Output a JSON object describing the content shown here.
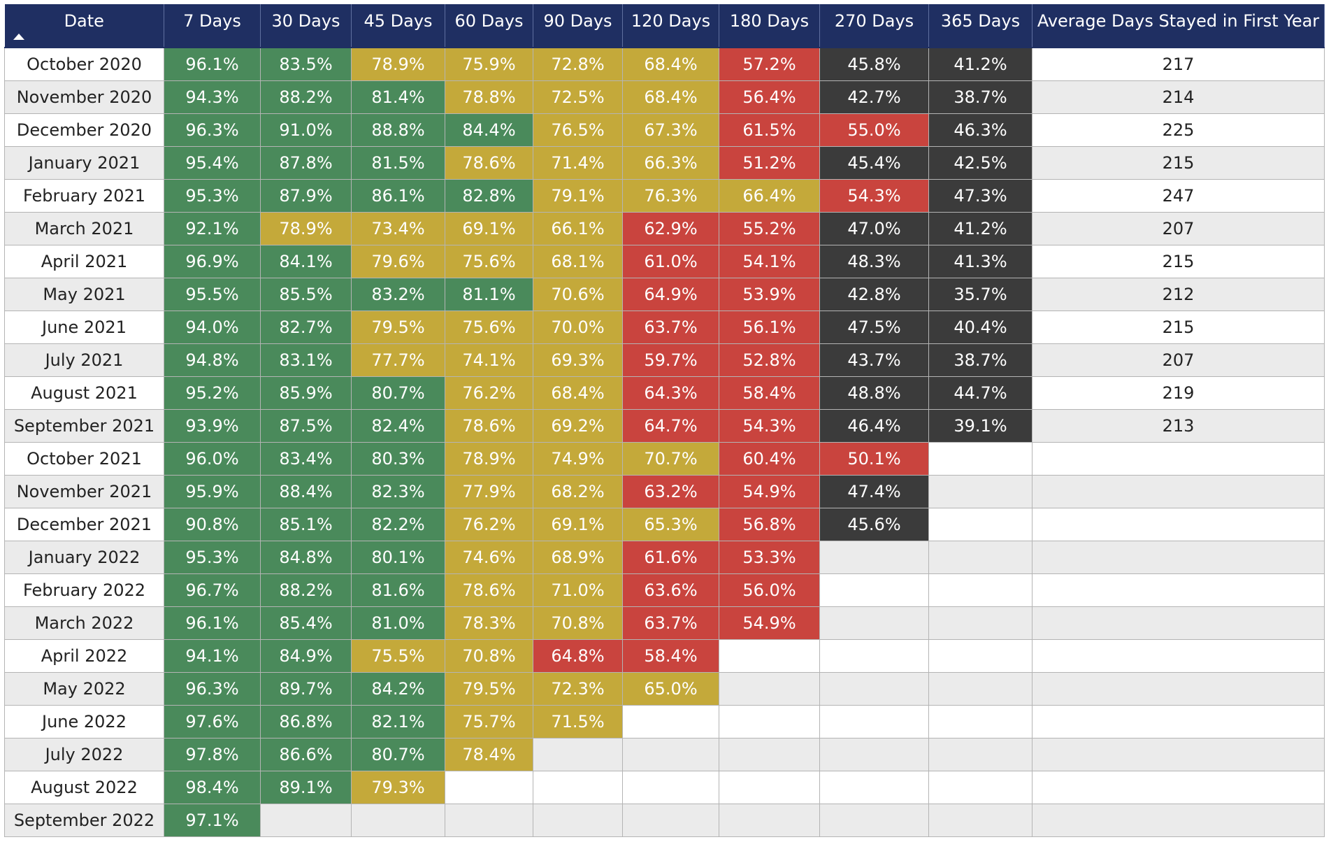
{
  "table": {
    "columns": [
      "Date",
      "7 Days",
      "30 Days",
      "45 Days",
      "60 Days",
      "90 Days",
      "120 Days",
      "180 Days",
      "270 Days",
      "365 Days",
      "Average Days Stayed in First Year"
    ],
    "sort_icon": "sort-ascending-icon",
    "colors": {
      "header": "#1f2f62",
      "green": "#4a8a5b",
      "yellow": "#c4a93a",
      "red": "#c9443e",
      "dark": "#3b3b3b"
    },
    "rows": [
      {
        "date": "October 2020",
        "values": [
          "96.1%",
          "83.5%",
          "78.9%",
          "75.9%",
          "72.8%",
          "68.4%",
          "57.2%",
          "45.8%",
          "41.2%"
        ],
        "colors": [
          "green",
          "green",
          "yellow",
          "yellow",
          "yellow",
          "yellow",
          "red",
          "dark",
          "dark"
        ],
        "avg": "217"
      },
      {
        "date": "November 2020",
        "values": [
          "94.3%",
          "88.2%",
          "81.4%",
          "78.8%",
          "72.5%",
          "68.4%",
          "56.4%",
          "42.7%",
          "38.7%"
        ],
        "colors": [
          "green",
          "green",
          "green",
          "yellow",
          "yellow",
          "yellow",
          "red",
          "dark",
          "dark"
        ],
        "avg": "214"
      },
      {
        "date": "December 2020",
        "values": [
          "96.3%",
          "91.0%",
          "88.8%",
          "84.4%",
          "76.5%",
          "67.3%",
          "61.5%",
          "55.0%",
          "46.3%"
        ],
        "colors": [
          "green",
          "green",
          "green",
          "green",
          "yellow",
          "yellow",
          "red",
          "red",
          "dark"
        ],
        "avg": "225"
      },
      {
        "date": "January 2021",
        "values": [
          "95.4%",
          "87.8%",
          "81.5%",
          "78.6%",
          "71.4%",
          "66.3%",
          "51.2%",
          "45.4%",
          "42.5%"
        ],
        "colors": [
          "green",
          "green",
          "green",
          "yellow",
          "yellow",
          "yellow",
          "red",
          "dark",
          "dark"
        ],
        "avg": "215"
      },
      {
        "date": "February 2021",
        "values": [
          "95.3%",
          "87.9%",
          "86.1%",
          "82.8%",
          "79.1%",
          "76.3%",
          "66.4%",
          "54.3%",
          "47.3%"
        ],
        "colors": [
          "green",
          "green",
          "green",
          "green",
          "yellow",
          "yellow",
          "yellow",
          "red",
          "dark"
        ],
        "avg": "247"
      },
      {
        "date": "March 2021",
        "values": [
          "92.1%",
          "78.9%",
          "73.4%",
          "69.1%",
          "66.1%",
          "62.9%",
          "55.2%",
          "47.0%",
          "41.2%"
        ],
        "colors": [
          "green",
          "yellow",
          "yellow",
          "yellow",
          "yellow",
          "red",
          "red",
          "dark",
          "dark"
        ],
        "avg": "207"
      },
      {
        "date": "April 2021",
        "values": [
          "96.9%",
          "84.1%",
          "79.6%",
          "75.6%",
          "68.1%",
          "61.0%",
          "54.1%",
          "48.3%",
          "41.3%"
        ],
        "colors": [
          "green",
          "green",
          "yellow",
          "yellow",
          "yellow",
          "red",
          "red",
          "dark",
          "dark"
        ],
        "avg": "215"
      },
      {
        "date": "May 2021",
        "values": [
          "95.5%",
          "85.5%",
          "83.2%",
          "81.1%",
          "70.6%",
          "64.9%",
          "53.9%",
          "42.8%",
          "35.7%"
        ],
        "colors": [
          "green",
          "green",
          "green",
          "green",
          "yellow",
          "red",
          "red",
          "dark",
          "dark"
        ],
        "avg": "212"
      },
      {
        "date": "June 2021",
        "values": [
          "94.0%",
          "82.7%",
          "79.5%",
          "75.6%",
          "70.0%",
          "63.7%",
          "56.1%",
          "47.5%",
          "40.4%"
        ],
        "colors": [
          "green",
          "green",
          "yellow",
          "yellow",
          "yellow",
          "red",
          "red",
          "dark",
          "dark"
        ],
        "avg": "215"
      },
      {
        "date": "July 2021",
        "values": [
          "94.8%",
          "83.1%",
          "77.7%",
          "74.1%",
          "69.3%",
          "59.7%",
          "52.8%",
          "43.7%",
          "38.7%"
        ],
        "colors": [
          "green",
          "green",
          "yellow",
          "yellow",
          "yellow",
          "red",
          "red",
          "dark",
          "dark"
        ],
        "avg": "207"
      },
      {
        "date": "August 2021",
        "values": [
          "95.2%",
          "85.9%",
          "80.7%",
          "76.2%",
          "68.4%",
          "64.3%",
          "58.4%",
          "48.8%",
          "44.7%"
        ],
        "colors": [
          "green",
          "green",
          "green",
          "yellow",
          "yellow",
          "red",
          "red",
          "dark",
          "dark"
        ],
        "avg": "219"
      },
      {
        "date": "September 2021",
        "values": [
          "93.9%",
          "87.5%",
          "82.4%",
          "78.6%",
          "69.2%",
          "64.7%",
          "54.3%",
          "46.4%",
          "39.1%"
        ],
        "colors": [
          "green",
          "green",
          "green",
          "yellow",
          "yellow",
          "red",
          "red",
          "dark",
          "dark"
        ],
        "avg": "213"
      },
      {
        "date": "October 2021",
        "values": [
          "96.0%",
          "83.4%",
          "80.3%",
          "78.9%",
          "74.9%",
          "70.7%",
          "60.4%",
          "50.1%",
          ""
        ],
        "colors": [
          "green",
          "green",
          "green",
          "yellow",
          "yellow",
          "yellow",
          "red",
          "red",
          ""
        ],
        "avg": ""
      },
      {
        "date": "November 2021",
        "values": [
          "95.9%",
          "88.4%",
          "82.3%",
          "77.9%",
          "68.2%",
          "63.2%",
          "54.9%",
          "47.4%",
          ""
        ],
        "colors": [
          "green",
          "green",
          "green",
          "yellow",
          "yellow",
          "red",
          "red",
          "dark",
          ""
        ],
        "avg": ""
      },
      {
        "date": "December 2021",
        "values": [
          "90.8%",
          "85.1%",
          "82.2%",
          "76.2%",
          "69.1%",
          "65.3%",
          "56.8%",
          "45.6%",
          ""
        ],
        "colors": [
          "green",
          "green",
          "green",
          "yellow",
          "yellow",
          "yellow",
          "red",
          "dark",
          ""
        ],
        "avg": ""
      },
      {
        "date": "January 2022",
        "values": [
          "95.3%",
          "84.8%",
          "80.1%",
          "74.6%",
          "68.9%",
          "61.6%",
          "53.3%",
          "",
          ""
        ],
        "colors": [
          "green",
          "green",
          "green",
          "yellow",
          "yellow",
          "red",
          "red",
          "",
          ""
        ],
        "avg": ""
      },
      {
        "date": "February 2022",
        "values": [
          "96.7%",
          "88.2%",
          "81.6%",
          "78.6%",
          "71.0%",
          "63.6%",
          "56.0%",
          "",
          ""
        ],
        "colors": [
          "green",
          "green",
          "green",
          "yellow",
          "yellow",
          "red",
          "red",
          "",
          ""
        ],
        "avg": ""
      },
      {
        "date": "March 2022",
        "values": [
          "96.1%",
          "85.4%",
          "81.0%",
          "78.3%",
          "70.8%",
          "63.7%",
          "54.9%",
          "",
          ""
        ],
        "colors": [
          "green",
          "green",
          "green",
          "yellow",
          "yellow",
          "red",
          "red",
          "",
          ""
        ],
        "avg": ""
      },
      {
        "date": "April 2022",
        "values": [
          "94.1%",
          "84.9%",
          "75.5%",
          "70.8%",
          "64.8%",
          "58.4%",
          "",
          "",
          ""
        ],
        "colors": [
          "green",
          "green",
          "yellow",
          "yellow",
          "red",
          "red",
          "",
          "",
          ""
        ],
        "avg": ""
      },
      {
        "date": "May 2022",
        "values": [
          "96.3%",
          "89.7%",
          "84.2%",
          "79.5%",
          "72.3%",
          "65.0%",
          "",
          "",
          ""
        ],
        "colors": [
          "green",
          "green",
          "green",
          "yellow",
          "yellow",
          "yellow",
          "",
          "",
          ""
        ],
        "avg": ""
      },
      {
        "date": "June 2022",
        "values": [
          "97.6%",
          "86.8%",
          "82.1%",
          "75.7%",
          "71.5%",
          "",
          "",
          "",
          ""
        ],
        "colors": [
          "green",
          "green",
          "green",
          "yellow",
          "yellow",
          "",
          "",
          "",
          ""
        ],
        "avg": ""
      },
      {
        "date": "July 2022",
        "values": [
          "97.8%",
          "86.6%",
          "80.7%",
          "78.4%",
          "",
          "",
          "",
          "",
          ""
        ],
        "colors": [
          "green",
          "green",
          "green",
          "yellow",
          "",
          "",
          "",
          "",
          ""
        ],
        "avg": ""
      },
      {
        "date": "August 2022",
        "values": [
          "98.4%",
          "89.1%",
          "79.3%",
          "",
          "",
          "",
          "",
          "",
          ""
        ],
        "colors": [
          "green",
          "green",
          "yellow",
          "",
          "",
          "",
          "",
          "",
          ""
        ],
        "avg": ""
      },
      {
        "date": "September 2022",
        "values": [
          "97.1%",
          "",
          "",
          "",
          "",
          "",
          "",
          "",
          ""
        ],
        "colors": [
          "green",
          "",
          "",
          "",
          "",
          "",
          "",
          "",
          ""
        ],
        "avg": ""
      }
    ]
  }
}
